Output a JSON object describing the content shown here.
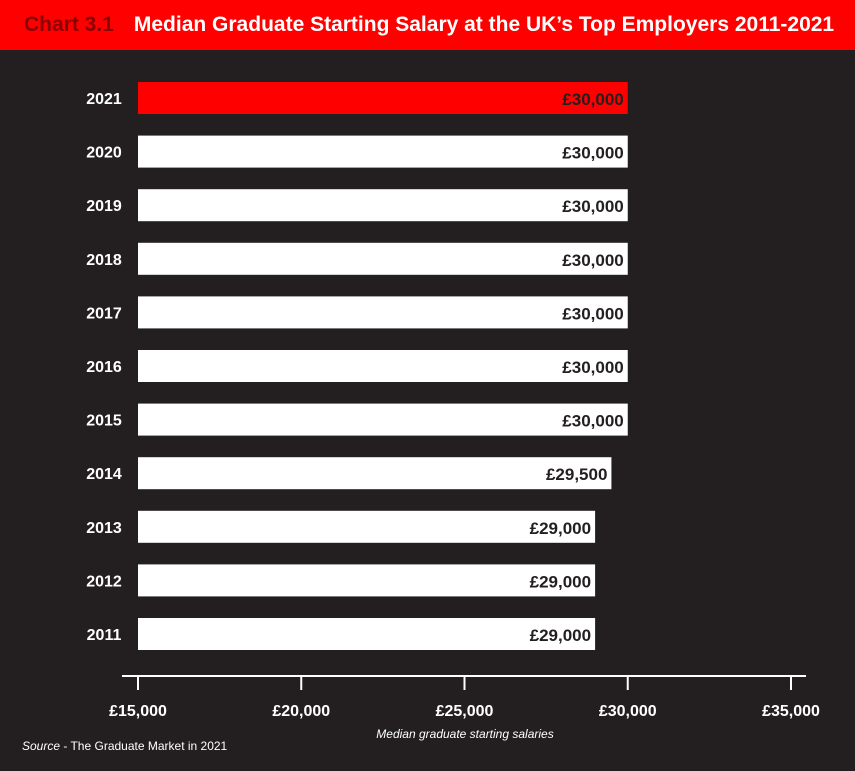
{
  "header": {
    "chart_number": "Chart 3.1",
    "title": "Median Graduate Starting Salary at the UK’s Top Employers 2011-2021"
  },
  "source": {
    "label": "Source",
    "text": " - The Graduate Market in 2021"
  },
  "colors": {
    "background": "#231f20",
    "header": "#ff0000",
    "highlight_bar": "#ff0000",
    "bar": "#ffffff",
    "chart_number": "#8b0000"
  },
  "chart_data": {
    "type": "bar",
    "orientation": "horizontal",
    "title": "Median Graduate Starting Salary at the UK’s Top Employers 2011-2021",
    "xlabel": "Median graduate starting salaries",
    "ylabel": "",
    "categories": [
      "2021",
      "2020",
      "2019",
      "2018",
      "2017",
      "2016",
      "2015",
      "2014",
      "2013",
      "2012",
      "2011"
    ],
    "values": [
      30000,
      30000,
      30000,
      30000,
      30000,
      30000,
      30000,
      29500,
      29000,
      29000,
      29000
    ],
    "value_labels": [
      "£30,000",
      "£30,000",
      "£30,000",
      "£30,000",
      "£30,000",
      "£30,000",
      "£30,000",
      "£29,500",
      "£29,000",
      "£29,000",
      "£29,000"
    ],
    "highlight": [
      "2021"
    ],
    "xlim": [
      15000,
      35000
    ],
    "xticks": [
      15000,
      20000,
      25000,
      30000,
      35000
    ],
    "xtick_labels": [
      "£15,000",
      "£20,000",
      "£25,000",
      "£30,000",
      "£35,000"
    ],
    "grid": false,
    "legend": "none"
  }
}
